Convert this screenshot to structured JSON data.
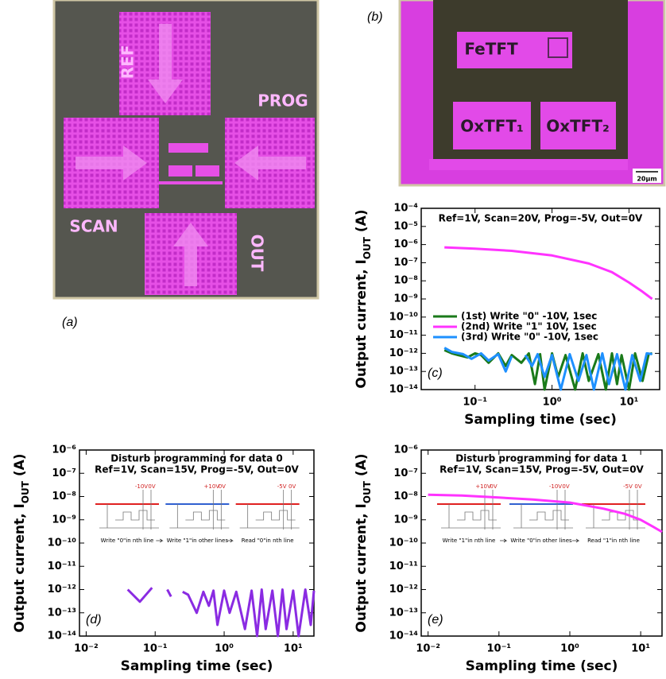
{
  "panel_labels": {
    "a": "(a)",
    "b": "(b)"
  },
  "photo_a": {
    "pads": [
      "REF",
      "PROG",
      "SCAN",
      "OUT"
    ]
  },
  "photo_b": {
    "devices": [
      "FeTFT",
      "OxTFT₁",
      "OxTFT₂"
    ],
    "scale": "20μm"
  },
  "chart_data": [
    {
      "type": "line",
      "panel": "(c)",
      "log_x": true,
      "log_y": true,
      "annotation": "Ref=1V, Scan=20V, Prog=-5V, Out=0V",
      "x_label": "Sampling time (sec)",
      "y_label": [
        "Output current, I",
        "OUT",
        " (A)"
      ],
      "xlim": [
        0.02,
        25
      ],
      "ylim": [
        1e-14,
        0.0001
      ],
      "xticks": [
        {
          "value": 0.1,
          "label": "10⁻¹"
        },
        {
          "value": 1,
          "label": "10⁰"
        },
        {
          "value": 10,
          "label": "10¹"
        }
      ],
      "yticks": [
        {
          "value": 0.0001,
          "label": "10⁻⁴"
        },
        {
          "value": 1e-05,
          "label": "10⁻⁵"
        },
        {
          "value": 1e-06,
          "label": "10⁻⁶"
        },
        {
          "value": 1e-07,
          "label": "10⁻⁷"
        },
        {
          "value": 1e-08,
          "label": "10⁻⁸"
        },
        {
          "value": 1e-09,
          "label": "10⁻⁹"
        },
        {
          "value": 1e-10,
          "label": "10⁻¹⁰"
        },
        {
          "value": 1e-11,
          "label": "10⁻¹¹"
        },
        {
          "value": 1e-12,
          "label": "10⁻¹²"
        },
        {
          "value": 1e-13,
          "label": "10⁻¹³"
        },
        {
          "value": 1e-14,
          "label": "10⁻¹⁴"
        }
      ],
      "legend": true,
      "series": [
        {
          "name": "(1st) Write \"0\" -10V, 1sec",
          "color": "#1a7a1a",
          "x": [
            0.04,
            0.05,
            0.06,
            0.08,
            0.1,
            0.12,
            0.15,
            0.2,
            0.25,
            0.3,
            0.4,
            0.5,
            0.6,
            0.7,
            0.8,
            1,
            1.2,
            1.5,
            2,
            2.5,
            3,
            4,
            5,
            6,
            7,
            8,
            10,
            12,
            15,
            18,
            20
          ],
          "values": [
            1.5e-12,
            1e-12,
            8e-13,
            6e-13,
            1e-12,
            8e-13,
            3e-13,
            1e-12,
            2e-13,
            8e-13,
            3e-13,
            1e-12,
            2e-14,
            9e-13,
            1e-14,
            1e-12,
            5e-14,
            8e-13,
            1e-14,
            1e-12,
            3e-14,
            9e-13,
            1e-14,
            1e-12,
            2e-14,
            8e-13,
            1e-14,
            1e-12,
            3e-14,
            9e-13,
            1e-12
          ]
        },
        {
          "name": "(2nd) Write \"1\" 10V, 1sec",
          "color": "#ff33ff",
          "x": [
            0.04,
            0.1,
            0.3,
            1,
            3,
            6,
            10,
            15,
            20
          ],
          "values": [
            7e-07,
            6e-07,
            4.5e-07,
            2.5e-07,
            9e-08,
            3e-08,
            8e-09,
            2.5e-09,
            1e-09
          ]
        },
        {
          "name": "(3rd) Write \"0\" -10V, 1sec",
          "color": "#1e90ff",
          "x": [
            0.04,
            0.05,
            0.07,
            0.09,
            0.12,
            0.15,
            0.2,
            0.25,
            0.3,
            0.35,
            0.45,
            0.55,
            0.65,
            0.8,
            1,
            1.3,
            1.7,
            2.2,
            2.8,
            3.5,
            4.5,
            5.5,
            7,
            9,
            11,
            14,
            17,
            20
          ],
          "values": [
            2e-12,
            1.2e-12,
            9e-13,
            5e-13,
            1e-12,
            4e-13,
            9e-13,
            1e-13,
            7e-13,
            null,
            8e-13,
            2e-13,
            9e-13,
            5e-14,
            8e-13,
            1e-14,
            9e-13,
            3e-14,
            8e-13,
            1e-14,
            1e-12,
            2e-14,
            9e-13,
            1e-14,
            8e-13,
            3e-14,
            1e-12,
            9e-13
          ]
        }
      ]
    },
    {
      "type": "line",
      "panel": "(d)",
      "log_x": true,
      "log_y": true,
      "title": "Disturb programming for data 0",
      "annotation": "Ref=1V, Scan=15V, Prog=-5V, Out=0V",
      "x_label": "Sampling time (sec)",
      "y_label": [
        "Output current, I",
        "OUT",
        " (A)"
      ],
      "xlim": [
        0.008,
        20
      ],
      "ylim": [
        1e-14,
        1e-06
      ],
      "xticks": [
        {
          "value": 0.01,
          "label": "10⁻²"
        },
        {
          "value": 0.1,
          "label": "10⁻¹"
        },
        {
          "value": 1,
          "label": "10⁰"
        },
        {
          "value": 10,
          "label": "10¹"
        }
      ],
      "yticks": [
        {
          "value": 1e-06,
          "label": "10⁻⁶"
        },
        {
          "value": 1e-07,
          "label": "10⁻⁷"
        },
        {
          "value": 1e-08,
          "label": "10⁻⁸"
        },
        {
          "value": 1e-09,
          "label": "10⁻⁹"
        },
        {
          "value": 1e-10,
          "label": "10⁻¹⁰"
        },
        {
          "value": 1e-11,
          "label": "10⁻¹¹"
        },
        {
          "value": 1e-12,
          "label": "10⁻¹²"
        },
        {
          "value": 1e-13,
          "label": "10⁻¹³"
        },
        {
          "value": 1e-14,
          "label": "10⁻¹⁴"
        }
      ],
      "inset": [
        {
          "caption": "Write \"0\"in nth line",
          "voltages": [
            "-10V",
            "0V"
          ],
          "line_color": "#e02020"
        },
        {
          "caption": "Write \"1\"in other lines",
          "voltages": [
            "+10V",
            "0V"
          ],
          "line_color": "#3060d0"
        },
        {
          "caption": "Read \"0\"in nth line",
          "voltages": [
            "-5V",
            "0V"
          ],
          "line_color": "#e02020"
        }
      ],
      "series": [
        {
          "color": "#8a2be2",
          "x": [
            0.04,
            0.06,
            0.09,
            0.12,
            0.15,
            0.17,
            0.2,
            0.25,
            0.3,
            0.4,
            0.5,
            0.6,
            0.7,
            0.8,
            1,
            1.2,
            1.5,
            2,
            2.5,
            3,
            3.5,
            4,
            5,
            6,
            7,
            8,
            10,
            12,
            15,
            18,
            20
          ],
          "values": [
            1e-12,
            3e-13,
            1.2e-12,
            null,
            1e-12,
            5e-13,
            null,
            8e-13,
            6e-13,
            1e-13,
            8e-13,
            2e-13,
            9e-13,
            3e-14,
            9e-13,
            1e-13,
            8e-13,
            2e-14,
            9e-13,
            1e-14,
            1e-12,
            2e-14,
            9e-13,
            1e-14,
            1e-12,
            2e-14,
            9e-13,
            1e-14,
            1e-12,
            3e-14,
            9e-13
          ]
        }
      ]
    },
    {
      "type": "line",
      "panel": "(e)",
      "log_x": true,
      "log_y": true,
      "title": "Disturb programming for data 1",
      "annotation": "Ref=1V, Scan=15V, Prog=-5V, Out=0V",
      "x_label": "Sampling time (sec)",
      "y_label": [
        "Output current, I",
        "OUT",
        " (A)"
      ],
      "xlim": [
        0.008,
        20
      ],
      "ylim": [
        1e-14,
        1e-06
      ],
      "xticks": [
        {
          "value": 0.01,
          "label": "10⁻²"
        },
        {
          "value": 0.1,
          "label": "10⁻¹"
        },
        {
          "value": 1,
          "label": "10⁰"
        },
        {
          "value": 10,
          "label": "10¹"
        }
      ],
      "yticks": [
        {
          "value": 1e-06,
          "label": "10⁻⁶"
        },
        {
          "value": 1e-07,
          "label": "10⁻⁷"
        },
        {
          "value": 1e-08,
          "label": "10⁻⁸"
        },
        {
          "value": 1e-09,
          "label": "10⁻⁹"
        },
        {
          "value": 1e-10,
          "label": "10⁻¹⁰"
        },
        {
          "value": 1e-11,
          "label": "10⁻¹¹"
        },
        {
          "value": 1e-12,
          "label": "10⁻¹²"
        },
        {
          "value": 1e-13,
          "label": "10⁻¹³"
        },
        {
          "value": 1e-14,
          "label": "10⁻¹⁴"
        }
      ],
      "inset": [
        {
          "caption": "Write \"1\"in nth line",
          "voltages": [
            "+10V",
            "0V"
          ],
          "line_color": "#e02020"
        },
        {
          "caption": "Write \"0\"in other lines",
          "voltages": [
            "-10V",
            "0V"
          ],
          "line_color": "#3060d0"
        },
        {
          "caption": "Read \"1\"in nth line",
          "voltages": [
            "-5V",
            "0V"
          ],
          "line_color": "#e02020"
        }
      ],
      "series": [
        {
          "color": "#ff33ff",
          "x": [
            0.01,
            0.03,
            0.1,
            0.3,
            1,
            3,
            6,
            10,
            15,
            20
          ],
          "values": [
            1.2e-08,
            1.1e-08,
            9e-09,
            7.5e-09,
            5.5e-09,
            3e-09,
            1.8e-09,
            1e-09,
            5e-10,
            3e-10
          ]
        }
      ]
    }
  ]
}
